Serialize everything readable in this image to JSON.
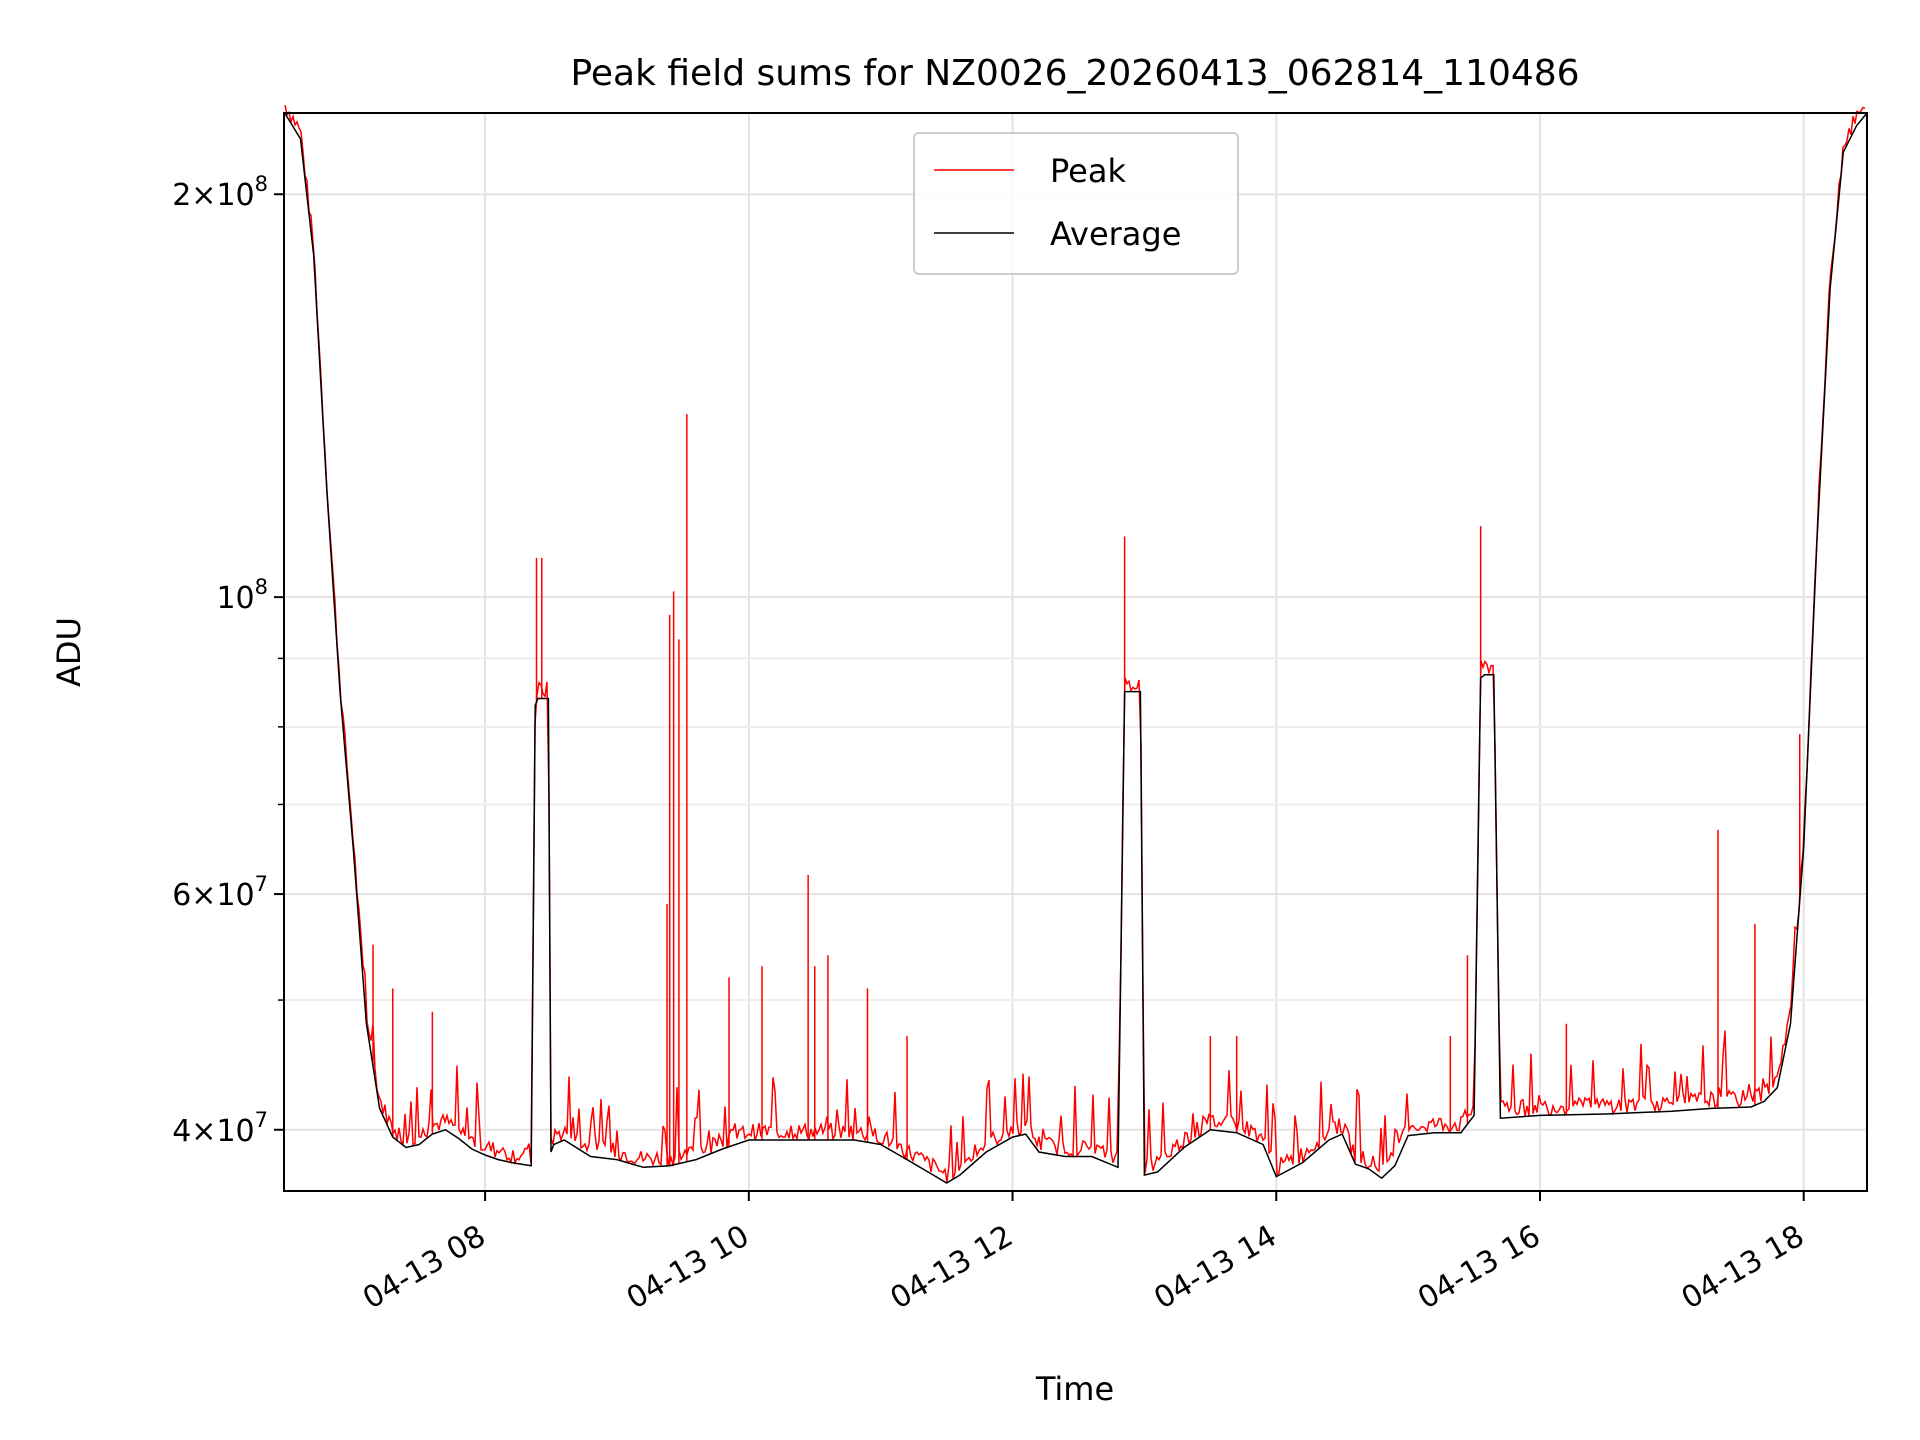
{
  "chart_data": {
    "type": "line",
    "title": "Peak field sums for NZ0026_20260413_062814_110486",
    "xlabel": "Time",
    "ylabel": "ADU",
    "yscale": "log",
    "ylim": [
      36000000,
      230000000
    ],
    "xlim_hours": [
      6.475,
      18.48
    ],
    "grid": true,
    "legend_position": "upper-center",
    "x_ticks": [
      {
        "value": 8,
        "label": "04-13 08"
      },
      {
        "value": 10,
        "label": "04-13 10"
      },
      {
        "value": 12,
        "label": "04-13 12"
      },
      {
        "value": 14,
        "label": "04-13 14"
      },
      {
        "value": 16,
        "label": "04-13 16"
      },
      {
        "value": 18,
        "label": "04-13 18"
      }
    ],
    "y_ticks": [
      {
        "value": 40000000,
        "mantissa": "4",
        "times": "×",
        "base": "10",
        "exp": "7"
      },
      {
        "value": 60000000,
        "mantissa": "6",
        "times": "×",
        "base": "10",
        "exp": "7"
      },
      {
        "value": 100000000,
        "mantissa": "",
        "times": "",
        "base": "10",
        "exp": "8"
      },
      {
        "value": 200000000,
        "mantissa": "2",
        "times": "×",
        "base": "10",
        "exp": "8"
      }
    ],
    "y_minor_ticks": [
      50000000,
      70000000,
      80000000,
      90000000
    ],
    "series": [
      {
        "name": "Average",
        "color": "#000000",
        "x_hours": [
          6.48,
          6.6,
          6.7,
          6.8,
          6.9,
          7.0,
          7.1,
          7.2,
          7.3,
          7.4,
          7.5,
          7.6,
          7.7,
          7.8,
          7.9,
          8.0,
          8.1,
          8.2,
          8.35,
          8.38,
          8.4,
          8.45,
          8.48,
          8.5,
          8.52,
          8.6,
          8.8,
          9.0,
          9.2,
          9.4,
          9.6,
          9.8,
          10.0,
          10.5,
          10.8,
          11.0,
          11.2,
          11.4,
          11.5,
          11.6,
          11.8,
          12.0,
          12.1,
          12.2,
          12.4,
          12.6,
          12.8,
          12.85,
          12.9,
          12.95,
          12.97,
          13.0,
          13.1,
          13.3,
          13.5,
          13.7,
          13.9,
          14.0,
          14.2,
          14.4,
          14.5,
          14.6,
          14.7,
          14.8,
          14.9,
          15.0,
          15.2,
          15.4,
          15.5,
          15.55,
          15.58,
          15.62,
          15.65,
          15.7,
          16.0,
          16.5,
          17.0,
          17.3,
          17.6,
          17.7,
          17.8,
          17.9,
          18.0,
          18.1,
          18.2,
          18.3,
          18.4,
          18.48
        ],
        "values": [
          230000000,
          220000000,
          180000000,
          120000000,
          85000000,
          65000000,
          48000000,
          41500000,
          39500000,
          38800000,
          39000000,
          39700000,
          40000000,
          39400000,
          38700000,
          38300000,
          38000000,
          37800000,
          37600000,
          83000000,
          84000000,
          84000000,
          84000000,
          38500000,
          39000000,
          39300000,
          38200000,
          38000000,
          37500000,
          37600000,
          38000000,
          38700000,
          39300000,
          39300000,
          39300000,
          39000000,
          38000000,
          37000000,
          36500000,
          37000000,
          38500000,
          39500000,
          39700000,
          38500000,
          38200000,
          38200000,
          37500000,
          85000000,
          85000000,
          85000000,
          85000000,
          37000000,
          37200000,
          38800000,
          40000000,
          39800000,
          39000000,
          36900000,
          37800000,
          39300000,
          39700000,
          37700000,
          37400000,
          36800000,
          37600000,
          39600000,
          39800000,
          39800000,
          41000000,
          87000000,
          87500000,
          87500000,
          87500000,
          40800000,
          41000000,
          41100000,
          41300000,
          41500000,
          41600000,
          42000000,
          43000000,
          48000000,
          65000000,
          110000000,
          170000000,
          215000000,
          225000000,
          230000000
        ]
      },
      {
        "name": "Peak",
        "color": "#ff0000",
        "spikes": [
          {
            "x_hours": 7.15,
            "value": 55000000
          },
          {
            "x_hours": 7.3,
            "value": 51000000
          },
          {
            "x_hours": 7.6,
            "value": 49000000
          },
          {
            "x_hours": 8.39,
            "value": 107000000
          },
          {
            "x_hours": 8.43,
            "value": 107000000
          },
          {
            "x_hours": 9.38,
            "value": 59000000
          },
          {
            "x_hours": 9.4,
            "value": 97000000
          },
          {
            "x_hours": 9.43,
            "value": 101000000
          },
          {
            "x_hours": 9.47,
            "value": 93000000
          },
          {
            "x_hours": 9.53,
            "value": 137000000
          },
          {
            "x_hours": 9.85,
            "value": 52000000
          },
          {
            "x_hours": 10.1,
            "value": 53000000
          },
          {
            "x_hours": 10.45,
            "value": 62000000
          },
          {
            "x_hours": 10.5,
            "value": 53000000
          },
          {
            "x_hours": 10.6,
            "value": 54000000
          },
          {
            "x_hours": 10.9,
            "value": 51000000
          },
          {
            "x_hours": 11.2,
            "value": 47000000
          },
          {
            "x_hours": 12.85,
            "value": 111000000
          },
          {
            "x_hours": 13.5,
            "value": 47000000
          },
          {
            "x_hours": 13.7,
            "value": 47000000
          },
          {
            "x_hours": 15.32,
            "value": 47000000
          },
          {
            "x_hours": 15.45,
            "value": 54000000
          },
          {
            "x_hours": 15.55,
            "value": 113000000
          },
          {
            "x_hours": 16.2,
            "value": 48000000
          },
          {
            "x_hours": 17.35,
            "value": 67000000
          },
          {
            "x_hours": 17.63,
            "value": 57000000
          },
          {
            "x_hours": 17.97,
            "value": 79000000
          }
        ]
      }
    ]
  }
}
